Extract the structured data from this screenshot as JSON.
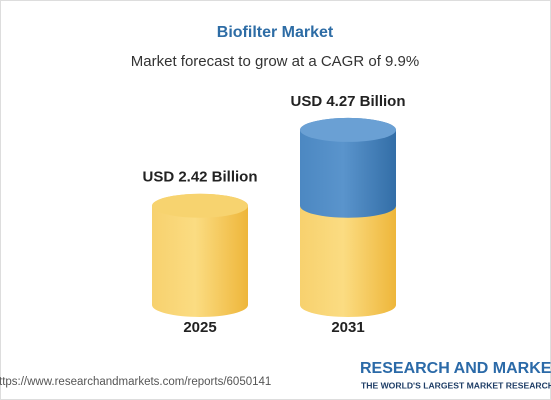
{
  "chart_data": {
    "type": "cylinder",
    "title": "Biofilter Market",
    "subtitle": "Market forecast to grow at a CAGR of 9.9%",
    "categories": [
      "2025",
      "2031"
    ],
    "values": [
      2.42,
      4.27
    ],
    "value_labels": [
      "USD 2.42 Billion",
      "USD 4.27 Billion"
    ],
    "color": "#f2bf45",
    "growth_color": "#3f7db9"
  },
  "footer": {
    "url": "ttps://www.researchandmarkets.com/reports/6050141",
    "brand": "RESEARCH AND MARKET",
    "tagline": "THE WORLD'S LARGEST MARKET RESEARCH STO"
  }
}
